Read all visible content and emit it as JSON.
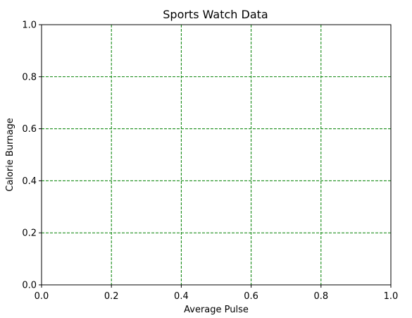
{
  "chart_data": {
    "type": "line",
    "title": "Sports Watch Data",
    "xlabel": "Average Pulse",
    "ylabel": "Calorie Burnage",
    "xlim": [
      0.0,
      1.0
    ],
    "ylim": [
      0.0,
      1.0
    ],
    "x_ticks": [
      0.0,
      0.2,
      0.4,
      0.6,
      0.8,
      1.0
    ],
    "y_ticks": [
      0.0,
      0.2,
      0.4,
      0.6,
      0.8,
      1.0
    ],
    "x_tick_labels": [
      "0.0",
      "0.2",
      "0.4",
      "0.6",
      "0.8",
      "1.0"
    ],
    "y_tick_labels": [
      "0.0",
      "0.2",
      "0.4",
      "0.6",
      "0.8",
      "1.0"
    ],
    "grid": true,
    "grid_style": "dashed",
    "grid_color": "#008000",
    "series": []
  }
}
